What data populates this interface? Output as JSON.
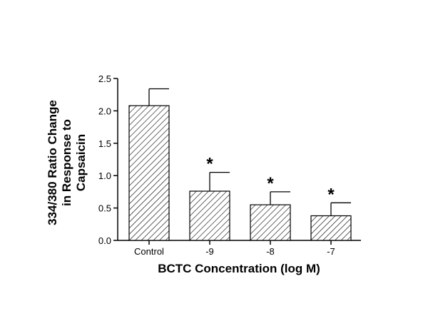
{
  "chart_data": {
    "type": "bar",
    "categories": [
      "Control",
      "-9",
      "-8",
      "-7"
    ],
    "values": [
      2.08,
      0.76,
      0.55,
      0.38
    ],
    "errors": [
      0.26,
      0.29,
      0.2,
      0.2
    ],
    "significance": [
      "",
      "*",
      "*",
      "*"
    ],
    "xlabel": "BCTC Concentration (log M)",
    "ylabel_lines": [
      "334/380 Ratio Change",
      "in Response to",
      "Capsaicin"
    ],
    "ylim": [
      0,
      2.5
    ],
    "yticks": [
      "0.0",
      "0.5",
      "1.0",
      "1.5",
      "2.0",
      "2.5"
    ],
    "bar_pattern": "diagonal-hatch",
    "grid": false,
    "legend": "none"
  }
}
